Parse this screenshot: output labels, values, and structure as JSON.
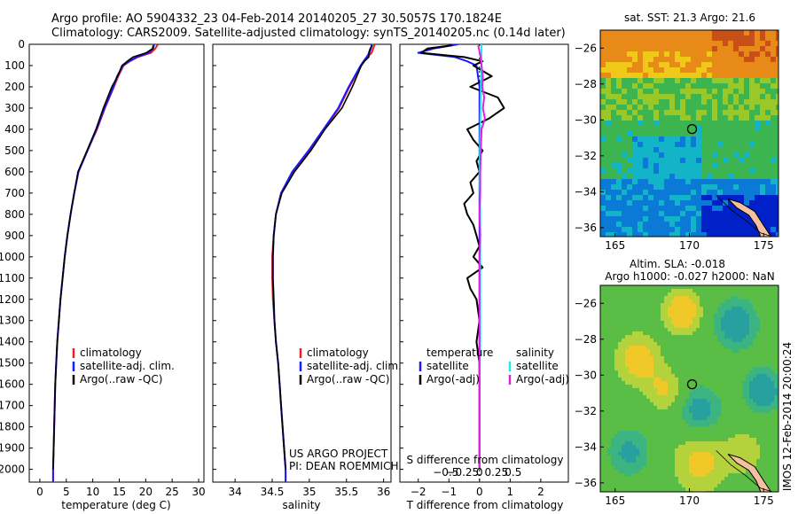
{
  "header": {
    "line1": "Argo profile: AO 5904332_23 04-Feb-2014 20140205_27 30.5057S 170.1824E",
    "line2": "Climatology: CARS2009. Satellite-adjusted climatology: synTS_20140205.nc (0.14d later)"
  },
  "credits": {
    "project": "US ARGO PROJECT",
    "pi": "PI: DEAN ROEMMICH",
    "imos": "IMOS 12-Feb-2014 20:00:24"
  },
  "colors": {
    "climatology": "#e8201a",
    "satellite": "#1a1aff",
    "argo": "#000000",
    "satellite_s": "#22e8e8",
    "argo_s": "#e020e0"
  },
  "chart_data": [
    {
      "type": "line",
      "panel": "temperature",
      "xlabel": "temperature (deg C)",
      "ylabel": "",
      "xlim": [
        -2,
        31
      ],
      "ylim": [
        2060,
        0
      ],
      "xticks": [
        0,
        5,
        10,
        15,
        20,
        25,
        30
      ],
      "yticks": [
        0,
        100,
        200,
        300,
        400,
        500,
        600,
        700,
        800,
        900,
        1000,
        1100,
        1200,
        1300,
        1400,
        1500,
        1600,
        1700,
        1800,
        1900,
        2000
      ],
      "legend": [
        "climatology",
        "satellite-adj. clim.",
        "Argo(..raw -QC)"
      ],
      "legend_position": "lower-left",
      "series": [
        {
          "name": "climatology",
          "color": "#e8201a",
          "y": [
            0,
            20,
            40,
            60,
            80,
            100,
            150,
            200,
            300,
            400,
            500,
            600,
            700,
            800,
            900,
            1000,
            1100,
            1200,
            1300,
            1400,
            1500,
            1600,
            1700,
            1800,
            1900,
            2000,
            2060
          ],
          "x": [
            22.3,
            21.8,
            21.0,
            18.5,
            17.0,
            15.8,
            14.8,
            14.0,
            12.3,
            10.8,
            9.0,
            7.3,
            6.5,
            5.8,
            5.2,
            4.7,
            4.3,
            3.9,
            3.6,
            3.3,
            3.1,
            2.9,
            2.8,
            2.7,
            2.6,
            2.5,
            2.5
          ]
        },
        {
          "name": "satellite-adj. clim.",
          "color": "#1a1aff",
          "y": [
            0,
            20,
            40,
            60,
            80,
            100,
            150,
            200,
            300,
            400,
            500,
            600,
            700,
            800,
            900,
            1000,
            1100,
            1200,
            1300,
            1400,
            1500,
            1600,
            1700,
            1800,
            1900,
            2000,
            2060
          ],
          "x": [
            21.6,
            21.4,
            20.6,
            18.3,
            16.8,
            15.7,
            14.6,
            13.9,
            12.2,
            10.7,
            9.0,
            7.3,
            6.5,
            5.8,
            5.2,
            4.7,
            4.3,
            3.9,
            3.6,
            3.3,
            3.1,
            2.9,
            2.8,
            2.7,
            2.6,
            2.5,
            2.5
          ]
        },
        {
          "name": "Argo(..raw -QC)",
          "color": "#000000",
          "y": [
            5,
            20,
            40,
            60,
            80,
            100,
            150,
            200,
            300,
            400,
            500,
            600,
            700,
            800,
            900,
            1000,
            1100,
            1200,
            1300,
            1400,
            1500,
            1600,
            1700,
            1800,
            1900,
            2000
          ],
          "x": [
            21.4,
            21.3,
            20.1,
            17.6,
            16.5,
            15.5,
            14.7,
            13.6,
            12.0,
            10.6,
            8.9,
            7.2,
            6.5,
            5.8,
            5.2,
            4.7,
            4.3,
            3.9,
            3.6,
            3.3,
            3.1,
            2.9,
            2.8,
            2.7,
            2.6,
            2.5
          ]
        }
      ]
    },
    {
      "type": "line",
      "panel": "salinity",
      "xlabel": "salinity",
      "ylabel": "",
      "xlim": [
        33.7,
        36.1
      ],
      "ylim": [
        2060,
        0
      ],
      "xticks": [
        34,
        34.5,
        35,
        35.5,
        36
      ],
      "legend": [
        "climatology",
        "satellite-adj. clim.",
        "Argo(..raw -QC)"
      ],
      "legend_position": "lower-left",
      "series": [
        {
          "name": "climatology",
          "color": "#e8201a",
          "y": [
            0,
            20,
            40,
            60,
            80,
            100,
            150,
            200,
            300,
            400,
            500,
            600,
            700,
            800,
            900,
            1000,
            1100,
            1200,
            1300,
            1400,
            1500,
            1600,
            1700,
            1800,
            1900,
            2000,
            2060
          ],
          "x": [
            35.88,
            35.86,
            35.84,
            35.78,
            35.74,
            35.7,
            35.62,
            35.54,
            35.4,
            35.2,
            35.0,
            34.78,
            34.62,
            34.55,
            34.52,
            34.5,
            34.5,
            34.51,
            34.53,
            34.55,
            34.58,
            34.6,
            34.62,
            34.64,
            34.66,
            34.68,
            34.68
          ]
        },
        {
          "name": "satellite-adj. clim.",
          "color": "#1a1aff",
          "y": [
            0,
            20,
            40,
            60,
            80,
            100,
            150,
            200,
            300,
            400,
            500,
            600,
            700,
            800,
            900,
            1000,
            1100,
            1200,
            1300,
            1400,
            1500,
            1600,
            1700,
            1800,
            1900,
            2000,
            2060
          ],
          "x": [
            35.84,
            35.83,
            35.81,
            35.77,
            35.73,
            35.69,
            35.61,
            35.53,
            35.39,
            35.19,
            34.99,
            34.77,
            34.62,
            34.55,
            34.52,
            34.51,
            34.51,
            34.52,
            34.53,
            34.55,
            34.58,
            34.6,
            34.62,
            34.64,
            34.66,
            34.68,
            34.68
          ]
        },
        {
          "name": "Argo(..raw -QC)",
          "color": "#000000",
          "y": [
            5,
            20,
            40,
            60,
            80,
            100,
            150,
            200,
            300,
            400,
            500,
            600,
            700,
            800,
            900,
            1000,
            1100,
            1200,
            1300,
            1400,
            1500,
            1600,
            1700,
            1800,
            1900,
            2000
          ],
          "x": [
            35.85,
            35.82,
            35.8,
            35.8,
            35.74,
            35.7,
            35.64,
            35.58,
            35.44,
            35.21,
            35.02,
            34.8,
            34.63,
            34.55,
            34.52,
            34.51,
            34.51,
            34.52,
            34.53,
            34.55,
            34.58,
            34.6,
            34.62,
            34.64,
            34.66,
            34.68
          ]
        }
      ]
    },
    {
      "type": "line",
      "panel": "difference",
      "xlabel": "T difference from climatology",
      "xlabel_top": "S difference from climatology",
      "ylabel": "",
      "xlim": [
        -2.6,
        2.9
      ],
      "ylim": [
        2060,
        0
      ],
      "xticks": [
        -2,
        -1,
        0,
        1,
        2
      ],
      "s_xticks": [
        -0.5,
        -0.25,
        0,
        0.25,
        0.5
      ],
      "legend_groups": [
        {
          "title": "temperature",
          "entries": [
            "satellite",
            "Argo(-adj)"
          ]
        },
        {
          "title": "salinity",
          "entries": [
            "satellite",
            "Argo(-adj)"
          ]
        }
      ],
      "legend_position": "lower-center",
      "series": [
        {
          "name": "temperature satellite",
          "color": "#1a1aff",
          "y": [
            0,
            20,
            40,
            60,
            80,
            100,
            200,
            300,
            400,
            500,
            600,
            800,
            1000,
            1200,
            1400,
            1600,
            1800,
            2000
          ],
          "x": [
            -0.7,
            -1.5,
            -2.0,
            -0.8,
            -0.4,
            -0.1,
            0.0,
            0.0,
            0.0,
            0.0,
            0.0,
            0.0,
            0.0,
            0.0,
            0.0,
            0.0,
            0.0,
            0.0
          ]
        },
        {
          "name": "temperature Argo(-adj)",
          "color": "#000000",
          "y": [
            5,
            20,
            40,
            60,
            80,
            100,
            150,
            200,
            250,
            300,
            350,
            400,
            450,
            500,
            550,
            600,
            650,
            700,
            750,
            800,
            850,
            900,
            950,
            1000,
            1050,
            1100,
            1150,
            1200,
            1300,
            1400,
            1500,
            1600,
            1700,
            1800,
            1900,
            2000
          ],
          "x": [
            -0.9,
            -1.7,
            -1.9,
            -0.5,
            0.1,
            -0.2,
            0.4,
            -0.3,
            0.6,
            0.8,
            0.3,
            -0.4,
            -0.2,
            0.1,
            -0.1,
            0.0,
            -0.3,
            -0.2,
            -0.5,
            -0.4,
            -0.2,
            -0.1,
            0.0,
            -0.2,
            0.1,
            -0.4,
            -0.3,
            -0.1,
            0.0,
            -0.1,
            0.0,
            0.0,
            0.0,
            0.0,
            0.0,
            0.0
          ]
        },
        {
          "name": "salinity satellite",
          "color": "#22e8e8",
          "y": [
            0,
            100,
            200,
            400,
            600,
            800,
            1000,
            1200,
            1400,
            1600,
            1800,
            2000
          ],
          "s": [
            0.03,
            0.03,
            0.02,
            0.01,
            0.0,
            0.01,
            0.01,
            0.01,
            0.01,
            0.0,
            0.0,
            0.0
          ]
        },
        {
          "name": "salinity Argo(-adj)",
          "color": "#e020e0",
          "y": [
            5,
            50,
            100,
            150,
            200,
            250,
            300,
            350,
            400,
            500,
            600,
            700,
            800,
            900,
            1000,
            1200,
            1400,
            1600,
            1800,
            2000
          ],
          "s": [
            -0.02,
            0.01,
            0.03,
            0.05,
            0.04,
            0.07,
            0.05,
            0.08,
            0.03,
            0.02,
            0.01,
            0.01,
            0.0,
            0.01,
            0.0,
            0.0,
            0.0,
            0.0,
            0.0,
            0.0
          ]
        }
      ]
    },
    {
      "type": "heatmap",
      "panel": "map-sst",
      "title": "sat. SST: 21.3 Argo: 21.6",
      "xlim": [
        164,
        176
      ],
      "ylim": [
        -36.5,
        -25
      ],
      "xticks": [
        165,
        170,
        175
      ],
      "yticks": [
        -26,
        -28,
        -30,
        -32,
        -34,
        -36
      ],
      "marker": {
        "x": 170.18,
        "y": -30.51
      }
    },
    {
      "type": "heatmap",
      "panel": "map-sla",
      "title_line1": "Altim. SLA: -0.018",
      "title_line2": "Argo h1000: -0.027 h2000: NaN",
      "xlim": [
        164,
        176
      ],
      "ylim": [
        -36.5,
        -25
      ],
      "xticks": [
        165,
        170,
        175
      ],
      "yticks": [
        -26,
        -28,
        -30,
        -32,
        -34,
        -36
      ],
      "marker": {
        "x": 170.18,
        "y": -30.51
      }
    }
  ]
}
